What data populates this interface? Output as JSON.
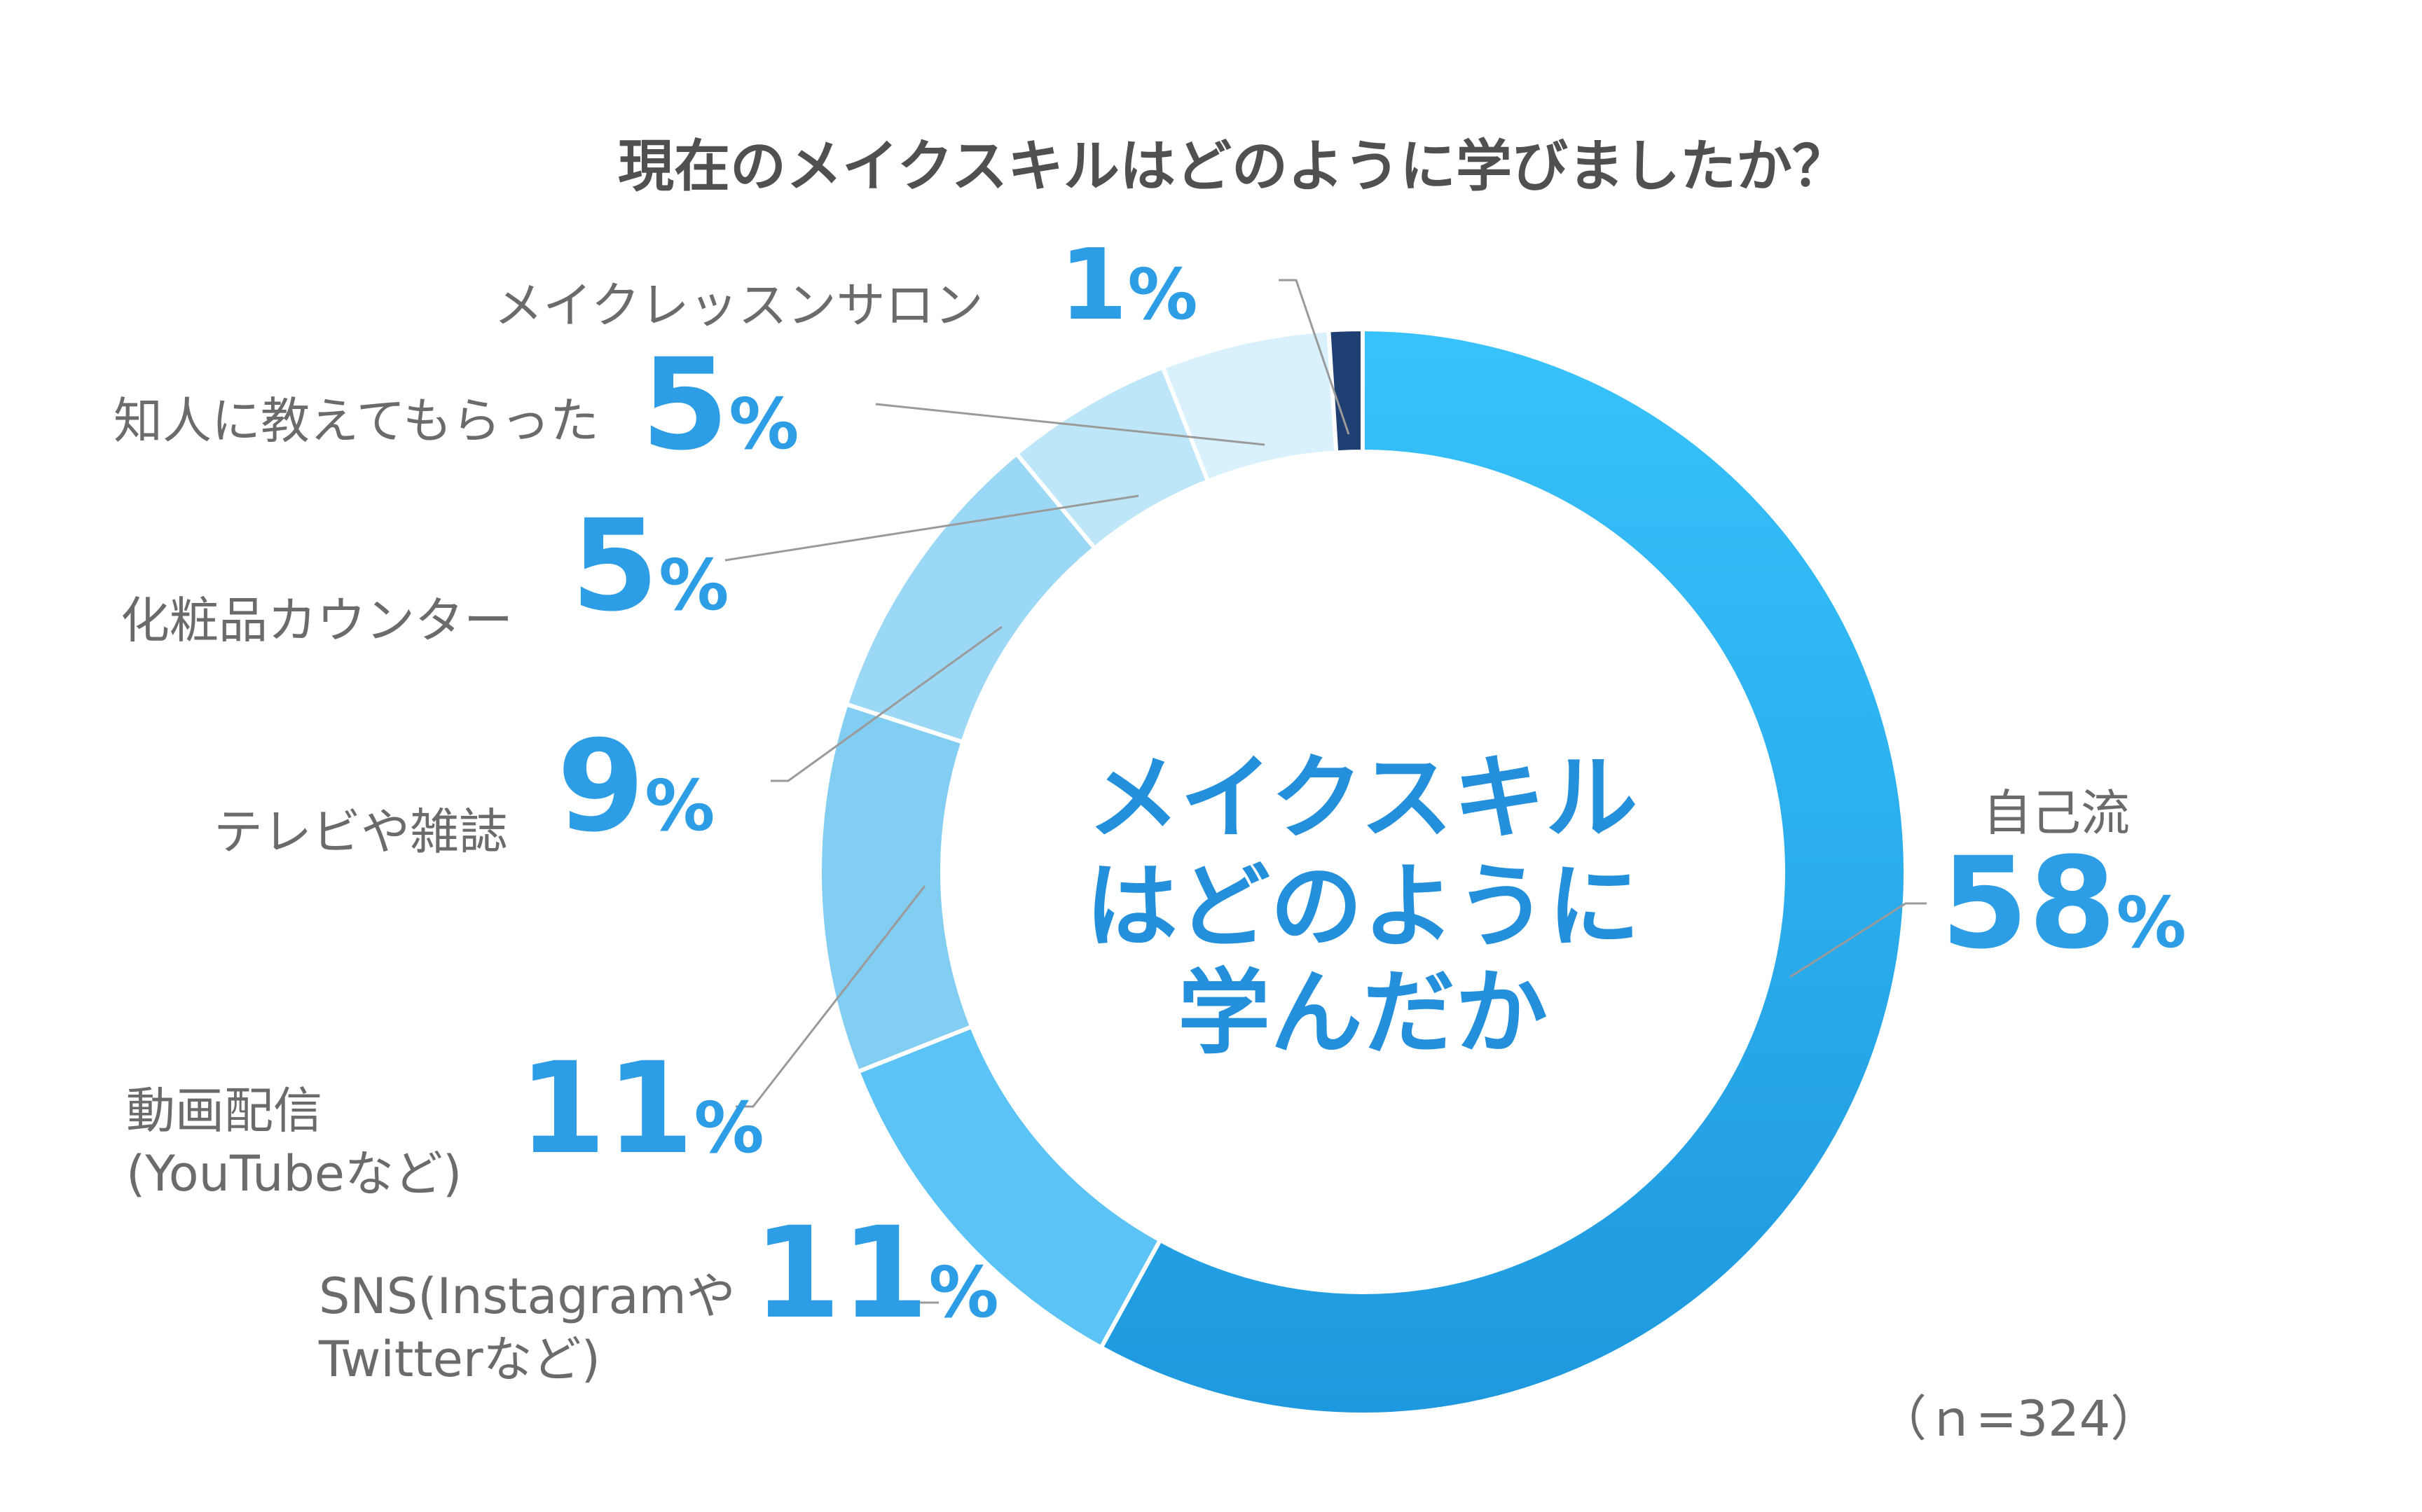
{
  "chart_data": {
    "type": "pie",
    "title": "現在のメイクスキルはどのように学びましたか？",
    "center_label": [
      "メイクスキル",
      "はどのように",
      "学んだか"
    ],
    "note": "（ｎ=324）",
    "unit": "%",
    "slices": [
      {
        "label": "自己流",
        "value": 58,
        "color": "#29aaf0"
      },
      {
        "label": "SNS(Instagramや Twitterなど)",
        "value": 11,
        "color": "#5bc3f5"
      },
      {
        "label": "動画配信 (YouTubeなど)",
        "value": 11,
        "color": "#82cdf2"
      },
      {
        "label": "テレビや雑誌",
        "value": 9,
        "color": "#9bd8f5"
      },
      {
        "label": "化粧品カウンター",
        "value": 5,
        "color": "#bde6f9"
      },
      {
        "label": "知人に教えてもらった",
        "value": 5,
        "color": "#d8f1fc"
      },
      {
        "label": "メイクレッスンサロン",
        "value": 1,
        "color": "#1f3f72"
      }
    ]
  }
}
